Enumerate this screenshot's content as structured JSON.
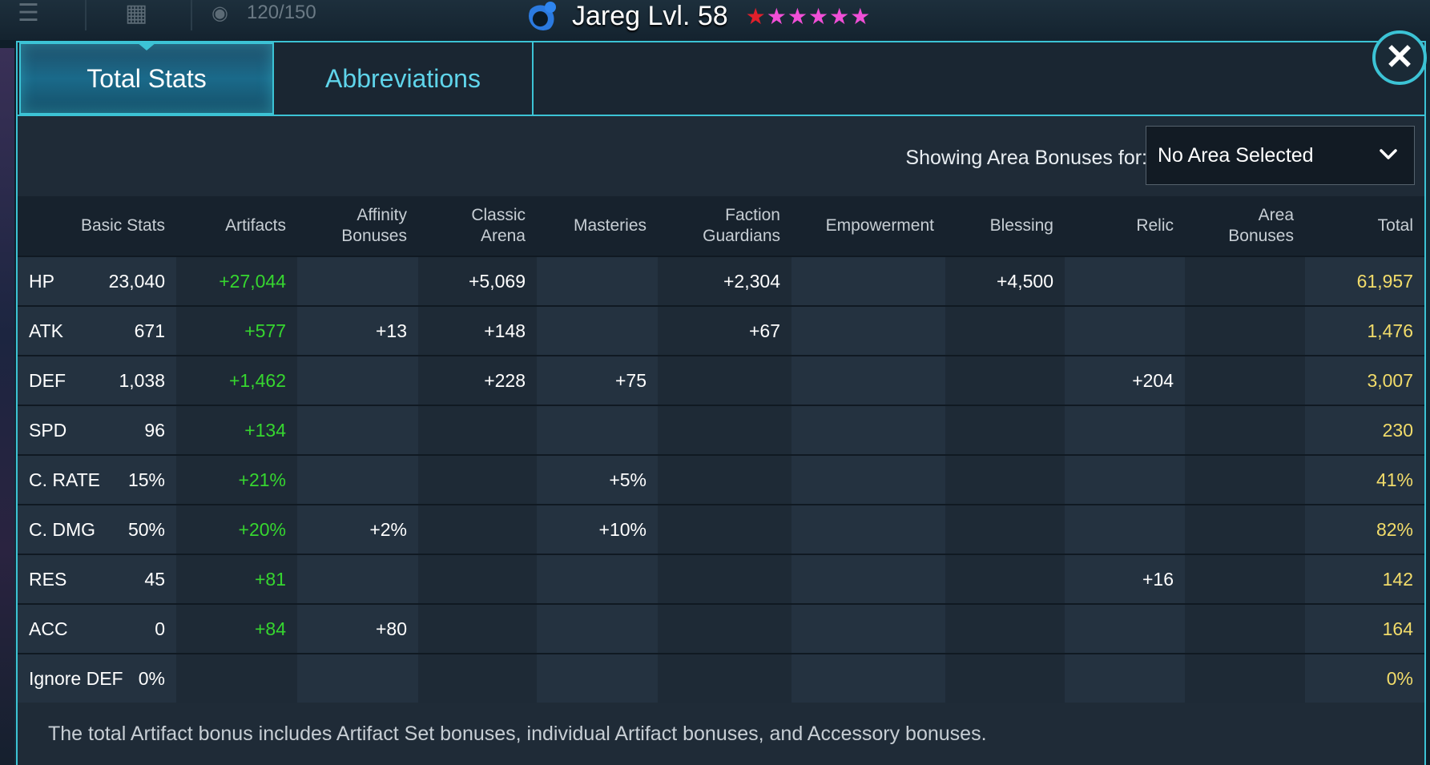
{
  "topbar": {
    "count": "120/150"
  },
  "hero": {
    "name": "Jareg Lvl. 58",
    "stars": {
      "red": 1,
      "pink": 5
    }
  },
  "tabs": {
    "total_stats": "Total Stats",
    "abbreviations": "Abbreviations"
  },
  "area_filter": {
    "label": "Showing Area Bonuses for:",
    "selected": "No Area Selected"
  },
  "table": {
    "headers": {
      "basic_stats": "Basic Stats",
      "artifacts": "Artifacts",
      "affinity_1": "Affinity",
      "affinity_2": "Bonuses",
      "classic_arena": "Classic Arena",
      "masteries": "Masteries",
      "faction_1": "Faction",
      "faction_2": "Guardians",
      "empowerment": "Empowerment",
      "blessing": "Blessing",
      "relic": "Relic",
      "area_1": "Area",
      "area_2": "Bonuses",
      "total": "Total"
    },
    "rows": [
      {
        "name": "HP",
        "basic": "23,040",
        "artifacts": "+27,044",
        "affinity": "",
        "arena": "+5,069",
        "masteries": "",
        "faction": "+2,304",
        "empowerment": "",
        "blessing": "+4,500",
        "relic": "",
        "area": "",
        "total": "61,957"
      },
      {
        "name": "ATK",
        "basic": "671",
        "artifacts": "+577",
        "affinity": "+13",
        "arena": "+148",
        "masteries": "",
        "faction": "+67",
        "empowerment": "",
        "blessing": "",
        "relic": "",
        "area": "",
        "total": "1,476"
      },
      {
        "name": "DEF",
        "basic": "1,038",
        "artifacts": "+1,462",
        "affinity": "",
        "arena": "+228",
        "masteries": "+75",
        "faction": "",
        "empowerment": "",
        "blessing": "",
        "relic": "+204",
        "area": "",
        "total": "3,007"
      },
      {
        "name": "SPD",
        "basic": "96",
        "artifacts": "+134",
        "affinity": "",
        "arena": "",
        "masteries": "",
        "faction": "",
        "empowerment": "",
        "blessing": "",
        "relic": "",
        "area": "",
        "total": "230"
      },
      {
        "name": "C. RATE",
        "basic": "15%",
        "artifacts": "+21%",
        "affinity": "",
        "arena": "",
        "masteries": "+5%",
        "faction": "",
        "empowerment": "",
        "blessing": "",
        "relic": "",
        "area": "",
        "total": "41%"
      },
      {
        "name": "C. DMG",
        "basic": "50%",
        "artifacts": "+20%",
        "affinity": "+2%",
        "arena": "",
        "masteries": "+10%",
        "faction": "",
        "empowerment": "",
        "blessing": "",
        "relic": "",
        "area": "",
        "total": "82%"
      },
      {
        "name": "RES",
        "basic": "45",
        "artifacts": "+81",
        "affinity": "",
        "arena": "",
        "masteries": "",
        "faction": "",
        "empowerment": "",
        "blessing": "",
        "relic": "+16",
        "area": "",
        "total": "142"
      },
      {
        "name": "ACC",
        "basic": "0",
        "artifacts": "+84",
        "affinity": "+80",
        "arena": "",
        "masteries": "",
        "faction": "",
        "empowerment": "",
        "blessing": "",
        "relic": "",
        "area": "",
        "total": "164"
      },
      {
        "name": "Ignore DEF",
        "basic": "0%",
        "artifacts": "",
        "affinity": "",
        "arena": "",
        "masteries": "",
        "faction": "",
        "empowerment": "",
        "blessing": "",
        "relic": "",
        "area": "",
        "total": "0%"
      }
    ]
  },
  "footnote": "The total Artifact bonus includes Artifact Set bonuses, individual Artifact bonuses, and Accessory bonuses.",
  "colors": {
    "accent": "#3cc3d5",
    "artifact_green": "#36d62f",
    "total_yellow": "#f2dc6a"
  }
}
